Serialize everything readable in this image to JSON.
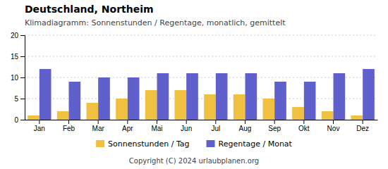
{
  "chart_data": {
    "type": "bar",
    "title": "Deutschland, Northeim",
    "subtitle": "Klimadiagramm: Sonnenstunden / Regentage, monatlich, gemittelt",
    "categories": [
      "Jan",
      "Feb",
      "Mar",
      "Apr",
      "Mai",
      "Jun",
      "Jul",
      "Aug",
      "Sep",
      "Okt",
      "Nov",
      "Dez"
    ],
    "series": [
      {
        "name": "Sonnenstunden / Tag",
        "color": "#f0c040",
        "values": [
          1,
          2,
          4,
          5,
          7,
          7,
          6,
          6,
          5,
          3,
          2,
          1
        ]
      },
      {
        "name": "Regentage / Monat",
        "color": "#6060cc",
        "values": [
          12,
          9,
          10,
          10,
          11,
          11,
          11,
          11,
          9,
          9,
          11,
          12
        ]
      }
    ],
    "ylim": [
      0,
      20
    ],
    "yticks": [
      0,
      5,
      10,
      15,
      20
    ],
    "grid": true,
    "legend": "bottom",
    "footer": "Copyright (C) 2024 urlaubplanen.org"
  }
}
